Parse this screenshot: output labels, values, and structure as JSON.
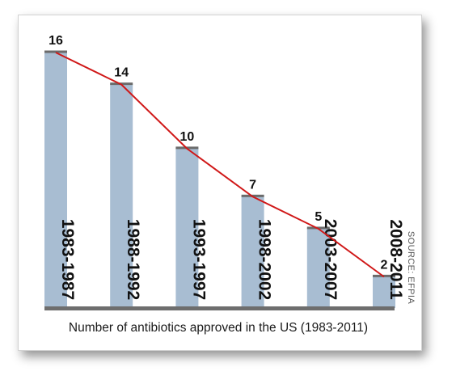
{
  "chart_data": {
    "type": "bar",
    "categories": [
      "1983-1987",
      "1988-1992",
      "1993-1997",
      "1998-2002",
      "2003-2007",
      "2008-2011"
    ],
    "values": [
      16,
      14,
      10,
      7,
      5,
      2
    ],
    "title": "Number of antibiotics approved in the US (1983-2011)",
    "source": "SOURCE: EFPIA",
    "ylim": [
      0,
      16
    ],
    "grid": false,
    "legend": "none",
    "trend_line": true,
    "bar_color": "#a8bdd2",
    "bar_cap_color": "#6b6b6b",
    "trend_color": "#d01818",
    "baseline_color": "#6e6e6e"
  }
}
